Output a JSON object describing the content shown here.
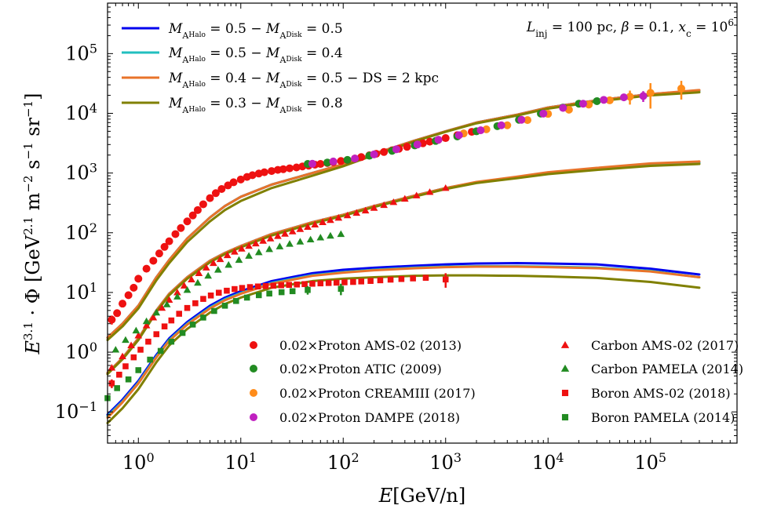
{
  "chart_data": {
    "type": "line",
    "xlabel": "E[GeV/n]",
    "ylabel": "E^3.1 · Φ [GeV^2.1 m^−2 s^−1 sr^−1]",
    "xscale": "log",
    "yscale": "log",
    "xlim": [
      0.5,
      700000
    ],
    "ylim": [
      0.03,
      700000
    ],
    "x_ticks": [
      {
        "value": 1,
        "base": "10",
        "exp": "0"
      },
      {
        "value": 10,
        "base": "10",
        "exp": "1"
      },
      {
        "value": 100,
        "base": "10",
        "exp": "2"
      },
      {
        "value": 1000,
        "base": "10",
        "exp": "3"
      },
      {
        "value": 10000,
        "base": "10",
        "exp": "4"
      },
      {
        "value": 100000,
        "base": "10",
        "exp": "5"
      }
    ],
    "y_ticks": [
      {
        "value": 0.1,
        "base": "10",
        "exp": "−1"
      },
      {
        "value": 1,
        "base": "10",
        "exp": "0"
      },
      {
        "value": 10,
        "base": "10",
        "exp": "1"
      },
      {
        "value": 100,
        "base": "10",
        "exp": "2"
      },
      {
        "value": 1000,
        "base": "10",
        "exp": "3"
      },
      {
        "value": 10000,
        "base": "10",
        "exp": "4"
      },
      {
        "value": 100000,
        "base": "10",
        "exp": "5"
      }
    ],
    "annotation": "L_inj = 100 pc, β = 0.1, x_c = 10^6",
    "legend_lines_placement": "top-left",
    "legend_markers_placement": "bottom-right",
    "x_grid": [
      0.5,
      0.7,
      1,
      1.5,
      2,
      3,
      5,
      7,
      10,
      20,
      50,
      100,
      200,
      500,
      1000,
      2000,
      5000,
      10000,
      30000,
      100000,
      300000
    ],
    "series": [
      {
        "name": "M_AHalo = 0.5 − M_ADisk = 0.5",
        "color": "#0000ee",
        "proton": [
          1.75,
          3.0,
          6.0,
          18,
          35,
          80,
          180,
          280,
          400,
          640,
          1000,
          1400,
          2100,
          3500,
          5000,
          7000,
          9500,
          12500,
          16500,
          21000,
          24000
        ],
        "carbon": [
          0.45,
          0.8,
          1.7,
          5.0,
          9.5,
          18,
          34,
          46,
          60,
          95,
          150,
          200,
          280,
          420,
          560,
          700,
          850,
          1000,
          1180,
          1400,
          1500
        ],
        "boron": [
          0.09,
          0.16,
          0.33,
          0.9,
          1.7,
          3.2,
          6.0,
          8.2,
          10.5,
          15.5,
          21,
          24,
          26,
          28,
          29.5,
          30.5,
          31,
          30.5,
          29.5,
          25,
          20
        ]
      },
      {
        "name": "M_AHalo = 0.5 − M_ADisk = 0.4",
        "color": "#22bfbf",
        "proton": [
          1.75,
          3.0,
          6.0,
          18,
          35,
          80,
          180,
          280,
          400,
          640,
          1000,
          1400,
          2100,
          3500,
          5000,
          7000,
          9500,
          12500,
          16500,
          21000,
          24000
        ],
        "carbon": [
          0.45,
          0.8,
          1.7,
          5.0,
          9.5,
          18,
          34,
          46,
          60,
          95,
          150,
          200,
          280,
          420,
          560,
          700,
          850,
          1000,
          1180,
          1380,
          1480
        ],
        "boron": [
          0.085,
          0.15,
          0.31,
          0.85,
          1.6,
          3.0,
          5.6,
          7.7,
          9.8,
          14.5,
          19.5,
          22,
          24,
          26,
          27,
          27.5,
          27.5,
          27,
          26,
          23,
          18
        ]
      },
      {
        "name": "M_AHalo = 0.4 − M_ADisk = 0.5 − DS = 2 kpc",
        "color": "#e8732a",
        "proton": [
          1.75,
          3.0,
          6.0,
          18,
          35,
          80,
          180,
          280,
          400,
          640,
          1000,
          1400,
          2100,
          3500,
          5000,
          7000,
          9500,
          12500,
          16500,
          21000,
          24500
        ],
        "carbon": [
          0.45,
          0.8,
          1.7,
          5.0,
          9.5,
          18,
          34,
          46,
          60,
          95,
          150,
          200,
          280,
          420,
          560,
          710,
          870,
          1030,
          1220,
          1450,
          1560
        ],
        "boron": [
          0.08,
          0.145,
          0.3,
          0.82,
          1.55,
          2.9,
          5.4,
          7.4,
          9.5,
          14,
          19,
          21.5,
          23.5,
          25.5,
          26.5,
          27,
          27,
          26.5,
          25.5,
          22.5,
          18
        ]
      },
      {
        "name": "M_AHalo = 0.3 − M_ADisk = 0.8",
        "color": "#808000",
        "proton": [
          1.6,
          2.7,
          5.4,
          16,
          31,
          70,
          155,
          240,
          340,
          560,
          900,
          1300,
          2000,
          3400,
          4900,
          6800,
          9200,
          12000,
          15800,
          20000,
          22500
        ],
        "carbon": [
          0.43,
          0.76,
          1.6,
          4.7,
          9.0,
          17,
          32,
          44,
          57,
          90,
          143,
          192,
          270,
          405,
          540,
          680,
          820,
          960,
          1130,
          1320,
          1420
        ],
        "boron": [
          0.065,
          0.115,
          0.24,
          0.68,
          1.3,
          2.45,
          4.6,
          6.4,
          8.2,
          12,
          15.5,
          17,
          18,
          19,
          19.3,
          19.3,
          19,
          18.5,
          17.5,
          15,
          12
        ]
      }
    ],
    "datasets": [
      {
        "name": "0.02×Proton AMS-02 (2013)",
        "color": "#ee1111",
        "marker": "circle",
        "x": [
          0.55,
          0.62,
          0.7,
          0.8,
          0.9,
          1.0,
          1.2,
          1.4,
          1.6,
          1.8,
          2.0,
          2.3,
          2.6,
          3.0,
          3.4,
          3.8,
          4.3,
          5.0,
          5.7,
          6.5,
          7.5,
          8.5,
          10,
          11.5,
          13,
          15,
          17,
          20,
          23,
          26,
          30,
          35,
          40,
          46,
          53,
          60,
          70,
          80,
          95,
          110,
          130,
          150,
          180,
          210,
          250,
          300,
          350,
          420,
          500,
          600,
          700,
          850,
          1000,
          1300,
          1800
        ],
        "y": [
          3.5,
          4.5,
          6.5,
          9.0,
          12,
          17,
          25,
          34,
          45,
          58,
          72,
          95,
          120,
          155,
          195,
          240,
          300,
          380,
          460,
          540,
          620,
          700,
          780,
          860,
          920,
          980,
          1030,
          1080,
          1130,
          1160,
          1200,
          1240,
          1290,
          1330,
          1380,
          1420,
          1470,
          1520,
          1590,
          1650,
          1750,
          1850,
          1980,
          2100,
          2250,
          2400,
          2550,
          2750,
          2950,
          3150,
          3350,
          3600,
          3850,
          4300,
          4900
        ],
        "y_err": [
          0.6,
          0.5,
          0,
          0,
          0,
          0,
          0,
          0,
          0,
          0,
          0,
          0,
          0,
          0,
          0,
          0,
          0,
          0,
          0,
          0,
          0,
          0,
          0,
          0,
          0,
          0,
          0,
          0,
          0,
          0,
          0,
          0,
          0,
          0,
          0,
          0,
          0,
          0,
          0,
          0,
          0,
          0,
          0,
          0,
          0,
          0,
          0,
          0,
          0,
          0,
          0,
          0,
          0,
          0,
          0
        ]
      },
      {
        "name": "0.02×Proton ATIC (2009)",
        "color": "#228b22",
        "marker": "circle",
        "x": [
          45,
          70,
          110,
          180,
          300,
          500,
          800,
          1300,
          2000,
          3200,
          5200,
          8500,
          14000,
          20000,
          30000
        ],
        "y": [
          1420,
          1500,
          1660,
          1950,
          2350,
          2900,
          3450,
          4100,
          5000,
          6100,
          7800,
          9900,
          12500,
          14500,
          16000
        ],
        "y_err": [
          0,
          0,
          0,
          0,
          0,
          0,
          0,
          0,
          0,
          0,
          0,
          0,
          0,
          1500,
          2000
        ]
      },
      {
        "name": "0.02×Proton CREAMIII (2017)",
        "color": "#ff8c1a",
        "marker": "circle",
        "x": [
          1500,
          2500,
          4000,
          6300,
          10000,
          16000,
          25000,
          40000,
          63000,
          100000,
          200000
        ],
        "y": [
          4600,
          5400,
          6300,
          7700,
          9800,
          11500,
          14000,
          16500,
          19000,
          22000,
          26000
        ],
        "y_err": [
          0,
          0,
          0,
          0,
          0,
          0,
          0,
          0,
          5000,
          10000,
          9000
        ]
      },
      {
        "name": "0.02×Proton DAMPE (2018)",
        "color": "#c020c0",
        "marker": "circle",
        "x": [
          50,
          80,
          130,
          200,
          330,
          530,
          850,
          1350,
          2200,
          3500,
          5500,
          9000,
          14000,
          22000,
          35000,
          55000,
          85000
        ],
        "y": [
          1430,
          1560,
          1750,
          2050,
          2500,
          3000,
          3600,
          4300,
          5200,
          6300,
          7800,
          9900,
          12300,
          14500,
          16800,
          18500,
          19500
        ],
        "y_err": [
          0,
          0,
          0,
          0,
          0,
          0,
          0,
          0,
          0,
          0,
          0,
          0,
          0,
          0,
          0,
          2500,
          4000
        ]
      },
      {
        "name": "Carbon AMS-02 (2017)",
        "color": "#ee1111",
        "marker": "triangle",
        "x": [
          0.55,
          0.7,
          0.85,
          1.0,
          1.2,
          1.4,
          1.7,
          2.0,
          2.4,
          2.8,
          3.3,
          3.9,
          4.6,
          5.4,
          6.3,
          7.4,
          8.7,
          10.2,
          12,
          14,
          16.5,
          19.5,
          23,
          27,
          32,
          38,
          45,
          53,
          63,
          75,
          90,
          110,
          135,
          165,
          200,
          250,
          310,
          400,
          520,
          700,
          1000
        ],
        "y": [
          0.55,
          0.85,
          1.3,
          1.9,
          2.8,
          3.8,
          5.5,
          7.5,
          10,
          13,
          16.5,
          21,
          26,
          31,
          36,
          42,
          48,
          54,
          60,
          66,
          73,
          80,
          88,
          96,
          105,
          115,
          125,
          137,
          150,
          163,
          178,
          195,
          215,
          235,
          260,
          290,
          325,
          370,
          420,
          480,
          560
        ],
        "y_err": [
          0,
          0,
          0,
          0,
          0,
          0,
          0,
          0,
          0,
          0,
          0,
          0,
          0,
          0,
          0,
          0,
          0,
          0,
          0,
          0,
          0,
          0,
          0,
          0,
          0,
          0,
          0,
          0,
          0,
          0,
          0,
          0,
          0,
          0,
          0,
          0,
          0,
          0,
          0,
          0,
          40
        ]
      },
      {
        "name": "Carbon PAMELA (2014)",
        "color": "#228b22",
        "marker": "triangle",
        "x": [
          0.6,
          0.75,
          0.95,
          1.2,
          1.5,
          1.9,
          2.4,
          3.0,
          3.8,
          4.8,
          6.0,
          7.6,
          9.6,
          12,
          15,
          19,
          24,
          30,
          38,
          48,
          60,
          75,
          95
        ],
        "y": [
          1.1,
          1.6,
          2.3,
          3.3,
          4.6,
          6.3,
          8.5,
          11,
          14.5,
          19,
          24,
          29,
          35,
          41,
          47,
          53,
          59,
          65,
          71,
          77,
          83,
          89,
          95
        ]
      },
      {
        "name": "Boron AMS-02 (2018)",
        "color": "#ee1111",
        "marker": "square",
        "x": [
          0.55,
          0.65,
          0.75,
          0.9,
          1.05,
          1.25,
          1.5,
          1.8,
          2.1,
          2.5,
          3.0,
          3.6,
          4.3,
          5.1,
          6.1,
          7.3,
          8.7,
          10.3,
          12.3,
          14.7,
          17.5,
          20.8,
          24.8,
          29.6,
          35.3,
          42,
          50,
          60,
          72,
          86,
          103,
          125,
          150,
          185,
          230,
          290,
          370,
          480,
          640,
          1000
        ],
        "y": [
          0.3,
          0.42,
          0.58,
          0.82,
          1.1,
          1.5,
          2.0,
          2.7,
          3.4,
          4.4,
          5.5,
          6.6,
          7.8,
          8.9,
          9.9,
          10.7,
          11.4,
          11.9,
          12.3,
          12.6,
          12.8,
          13.0,
          13.2,
          13.4,
          13.6,
          13.8,
          14.0,
          14.2,
          14.4,
          14.6,
          14.8,
          15.0,
          15.3,
          15.6,
          16.0,
          16.4,
          16.8,
          17.2,
          17.6,
          16.5
        ],
        "y_err": [
          0.05,
          0,
          0,
          0,
          0,
          0,
          0,
          0,
          0,
          0,
          0,
          0,
          0,
          0,
          0,
          0,
          0,
          0,
          0,
          0,
          0,
          0,
          0,
          0,
          0,
          0,
          0,
          0,
          0,
          0,
          0,
          0,
          0,
          0,
          0,
          0,
          0,
          0,
          0,
          4.5
        ]
      },
      {
        "name": "Boron PAMELA (2014)",
        "color": "#228b22",
        "marker": "square",
        "x": [
          0.5,
          0.62,
          0.8,
          1.0,
          1.3,
          1.65,
          2.1,
          2.7,
          3.4,
          4.3,
          5.5,
          7.0,
          9.0,
          11.5,
          15,
          19,
          25,
          32,
          45,
          95
        ],
        "y": [
          0.17,
          0.25,
          0.35,
          0.5,
          0.75,
          1.05,
          1.5,
          2.1,
          2.9,
          3.8,
          4.9,
          6.0,
          7.2,
          8.2,
          9.0,
          9.6,
          10.1,
          10.5,
          11.0,
          11.5
        ],
        "y_err": [
          0,
          0,
          0,
          0,
          0,
          0,
          0,
          0,
          0,
          0,
          0,
          0,
          0,
          0,
          0,
          0,
          0,
          0,
          1.8,
          2.5
        ]
      }
    ]
  }
}
